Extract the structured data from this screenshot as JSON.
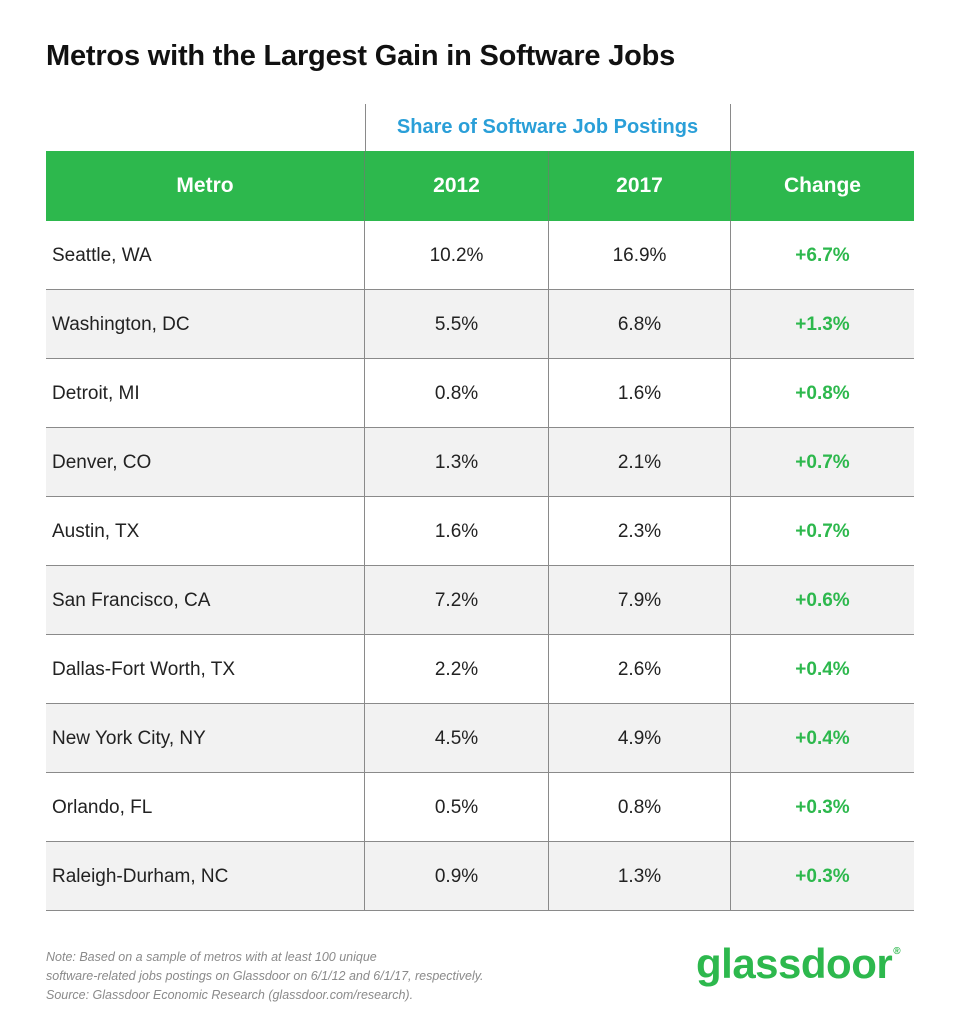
{
  "title": "Metros with the Largest Gain in Software Jobs",
  "colors": {
    "header_green": "#2db84d",
    "share_blue": "#2a9fd8",
    "change_green": "#2db84d",
    "row_shade": "#f2f2f2"
  },
  "chart_data": {
    "type": "table",
    "title": "Metros with the Largest Gain in Software Jobs",
    "group_header": "Share of Software Job Postings",
    "columns": [
      "Metro",
      "2012",
      "2017",
      "Change"
    ],
    "rows": [
      [
        "Seattle, WA",
        "10.2%",
        "16.9%",
        "+6.7%"
      ],
      [
        "Washington, DC",
        "5.5%",
        "6.8%",
        "+1.3%"
      ],
      [
        "Detroit, MI",
        "0.8%",
        "1.6%",
        "+0.8%"
      ],
      [
        "Denver, CO",
        "1.3%",
        "2.1%",
        "+0.7%"
      ],
      [
        "Austin, TX",
        "1.6%",
        "2.3%",
        "+0.7%"
      ],
      [
        "San Francisco, CA",
        "7.2%",
        "7.9%",
        "+0.6%"
      ],
      [
        "Dallas-Fort Worth, TX",
        "2.2%",
        "2.6%",
        "+0.4%"
      ],
      [
        "New York City, NY",
        "4.5%",
        "4.9%",
        "+0.4%"
      ],
      [
        "Orlando, FL",
        "0.5%",
        "0.8%",
        "+0.3%"
      ],
      [
        "Raleigh-Durham, NC",
        "0.9%",
        "1.3%",
        "+0.3%"
      ]
    ]
  },
  "footer": {
    "note_line1": "Note: Based on a sample of metros with at least 100 unique",
    "note_line2": "software-related jobs postings on Glassdoor on 6/1/12 and 6/1/17, respectively.",
    "note_line3": "Source: Glassdoor Economic Research (glassdoor.com/research).",
    "logo_text": "glassdoor",
    "logo_mark": "®"
  }
}
